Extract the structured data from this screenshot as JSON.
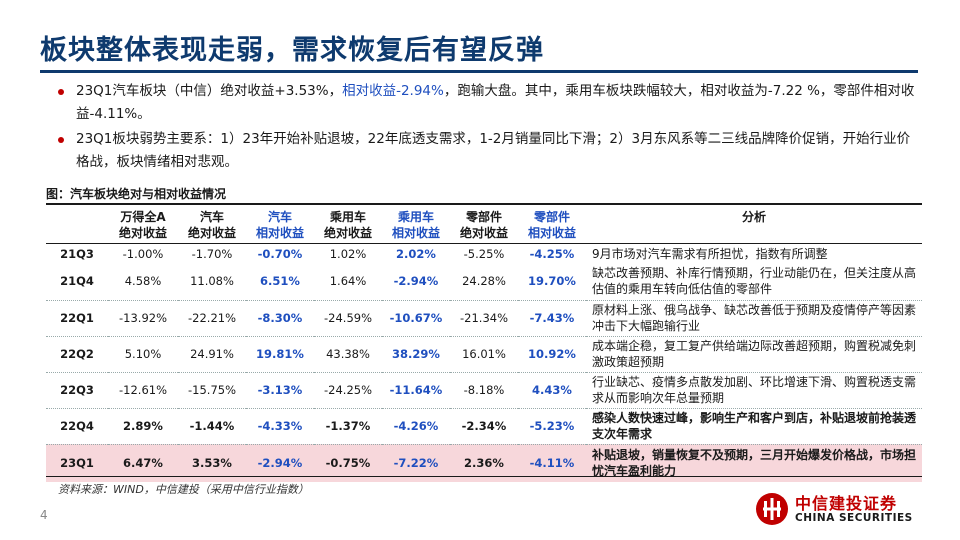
{
  "title": "板块整体表现走弱，需求恢复后有望反弹",
  "bullets": [
    {
      "pre": "23Q1汽车板块（中信）绝对收益+3.53%，",
      "hl": "相对收益-2.94%",
      "post": "，跑输大盘。其中，乘用车板块跌幅较大，相对收益为-7.22 %，零部件相对收益-4.11%。"
    },
    {
      "pre": "23Q1板块弱势主要系：1）23年开始补贴退坡，22年底透支需求，1-2月销量同比下滑；2）3月东风系等二三线品牌降价促销，开始行业价格战，板块情绪相对悲观。",
      "hl": "",
      "post": ""
    }
  ],
  "caption": "图：汽车板块绝对与相对收益情况",
  "table": {
    "headers": [
      {
        "l1": "",
        "l2": ""
      },
      {
        "l1": "万得全A",
        "l2": "绝对收益"
      },
      {
        "l1": "汽车",
        "l2": "绝对收益"
      },
      {
        "l1": "汽车",
        "l2": "相对收益"
      },
      {
        "l1": "乘用车",
        "l2": "绝对收益"
      },
      {
        "l1": "乘用车",
        "l2": "相对收益"
      },
      {
        "l1": "零部件",
        "l2": "绝对收益"
      },
      {
        "l1": "零部件",
        "l2": "相对收益"
      },
      {
        "l1": "分析",
        "l2": ""
      }
    ],
    "rows": [
      {
        "q": "21Q3",
        "c": [
          "-1.00%",
          "-1.70%",
          "-0.70%",
          "1.02%",
          "2.02%",
          "-5.25%",
          "-4.25%"
        ],
        "a": "9月市场对汽车需求有所担忧，指数有所调整"
      },
      {
        "q": "21Q4",
        "c": [
          "4.58%",
          "11.08%",
          "6.51%",
          "1.64%",
          "-2.94%",
          "24.28%",
          "19.70%"
        ],
        "a": "缺芯改善预期、补库行情预期，行业动能仍在，但关注度从高估值的乘用车转向低估值的零部件"
      },
      {
        "q": "22Q1",
        "c": [
          "-13.92%",
          "-22.21%",
          "-8.30%",
          "-24.59%",
          "-10.67%",
          "-21.34%",
          "-7.43%"
        ],
        "a": "原材料上涨、俄乌战争、缺芯改善低于预期及疫情停产等因素冲击下大幅跑输行业"
      },
      {
        "q": "22Q2",
        "c": [
          "5.10%",
          "24.91%",
          "19.81%",
          "43.38%",
          "38.29%",
          "16.01%",
          "10.92%"
        ],
        "a": "成本端企稳，复工复产供给端边际改善超预期，购置税减免刺激政策超预期"
      },
      {
        "q": "22Q3",
        "c": [
          "-12.61%",
          "-15.75%",
          "-3.13%",
          "-24.25%",
          "-11.64%",
          "-8.18%",
          "4.43%"
        ],
        "a": "行业缺芯、疫情多点散发加剧、环比增速下滑、购置税透支需求从而影响次年总量预期"
      },
      {
        "q": "22Q4",
        "c": [
          "2.89%",
          "-1.44%",
          "-4.33%",
          "-1.37%",
          "-4.26%",
          "-2.34%",
          "-5.23%"
        ],
        "a": "感染人数快速过峰，影响生产和客户到店，补贴退坡前抢装透支次年需求"
      },
      {
        "q": "23Q1",
        "c": [
          "6.47%",
          "3.53%",
          "-2.94%",
          "-0.75%",
          "-7.22%",
          "2.36%",
          "-4.11%"
        ],
        "a": "补贴退坡，销量恢复不及预期，三月开始爆发价格战，市场担忧汽车盈利能力"
      }
    ]
  },
  "source": "资料来源：WIND，中信建投（采用中信行业指数）",
  "page_number": "4",
  "logo": {
    "cn": "中信建投证券",
    "en": "CHINA SECURITIES"
  },
  "colors": {
    "title": "#0e3a6e",
    "highlight": "#1f4fbf",
    "bullet": "#c00000",
    "highlight_row": "#f7d7db"
  }
}
